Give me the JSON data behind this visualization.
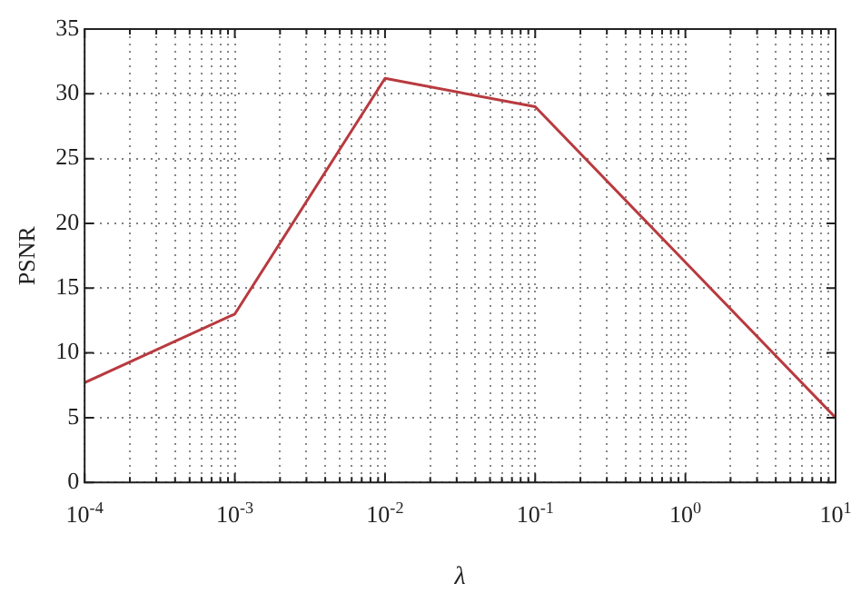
{
  "chart_data": {
    "type": "line",
    "xlabel": "λ",
    "ylabel": "PSNR",
    "log": "x",
    "grid": true,
    "line_style": "solid",
    "marker": "none",
    "legend": false,
    "x": [
      0.0001,
      0.001,
      0.01,
      0.1,
      1,
      10
    ],
    "series": [
      {
        "color": "#b83a3f",
        "values": [
          7.7,
          13,
          31.2,
          29,
          17,
          5
        ]
      }
    ],
    "xlim": [
      0.0001,
      10
    ],
    "xticks": [
      {
        "value": 0.0001,
        "label": "10$^{-4}$"
      },
      {
        "value": 0.0002,
        "label": null
      },
      {
        "value": 0.0003,
        "label": null
      },
      {
        "value": 0.0004,
        "label": null
      },
      {
        "value": 0.0005,
        "label": null
      },
      {
        "value": 0.0006,
        "label": null
      },
      {
        "value": 0.0007,
        "label": null
      },
      {
        "value": 0.0008,
        "label": null
      },
      {
        "value": 0.0009,
        "label": null
      },
      {
        "value": 0.001,
        "label": "10$^{-3}$"
      },
      {
        "value": 0.002,
        "label": null
      },
      {
        "value": 0.003,
        "label": null
      },
      {
        "value": 0.004,
        "label": null
      },
      {
        "value": 0.005,
        "label": null
      },
      {
        "value": 0.006,
        "label": null
      },
      {
        "value": 0.007,
        "label": null
      },
      {
        "value": 0.008,
        "label": null
      },
      {
        "value": 0.009,
        "label": null
      },
      {
        "value": 0.01,
        "label": "10$^{-2}$"
      },
      {
        "value": 0.02,
        "label": null
      },
      {
        "value": 0.03,
        "label": null
      },
      {
        "value": 0.04,
        "label": null
      },
      {
        "value": 0.05,
        "label": null
      },
      {
        "value": 0.06,
        "label": null
      },
      {
        "value": 0.07,
        "label": null
      },
      {
        "value": 0.08,
        "label": null
      },
      {
        "value": 0.09,
        "label": null
      },
      {
        "value": 0.1,
        "label": "10$^{-1}$"
      },
      {
        "value": 0.2,
        "label": null
      },
      {
        "value": 0.3,
        "label": null
      },
      {
        "value": 0.4,
        "label": null
      },
      {
        "value": 0.5,
        "label": null
      },
      {
        "value": 0.6,
        "label": null
      },
      {
        "value": 0.7,
        "label": null
      },
      {
        "value": 0.8,
        "label": null
      },
      {
        "value": 0.9,
        "label": null
      },
      {
        "value": 1,
        "label": "10$^{0}$"
      },
      {
        "value": 2,
        "label": null
      },
      {
        "value": 3,
        "label": null
      },
      {
        "value": 4,
        "label": null
      },
      {
        "value": 5,
        "label": null
      },
      {
        "value": 6,
        "label": null
      },
      {
        "value": 7,
        "label": null
      },
      {
        "value": 8,
        "label": null
      },
      {
        "value": 9,
        "label": null
      },
      {
        "value": 10,
        "label": "10$^{1}$"
      }
    ],
    "ylim": [
      0,
      35
    ],
    "yticks": [
      0,
      5,
      10,
      15,
      20,
      25,
      30,
      35
    ]
  }
}
